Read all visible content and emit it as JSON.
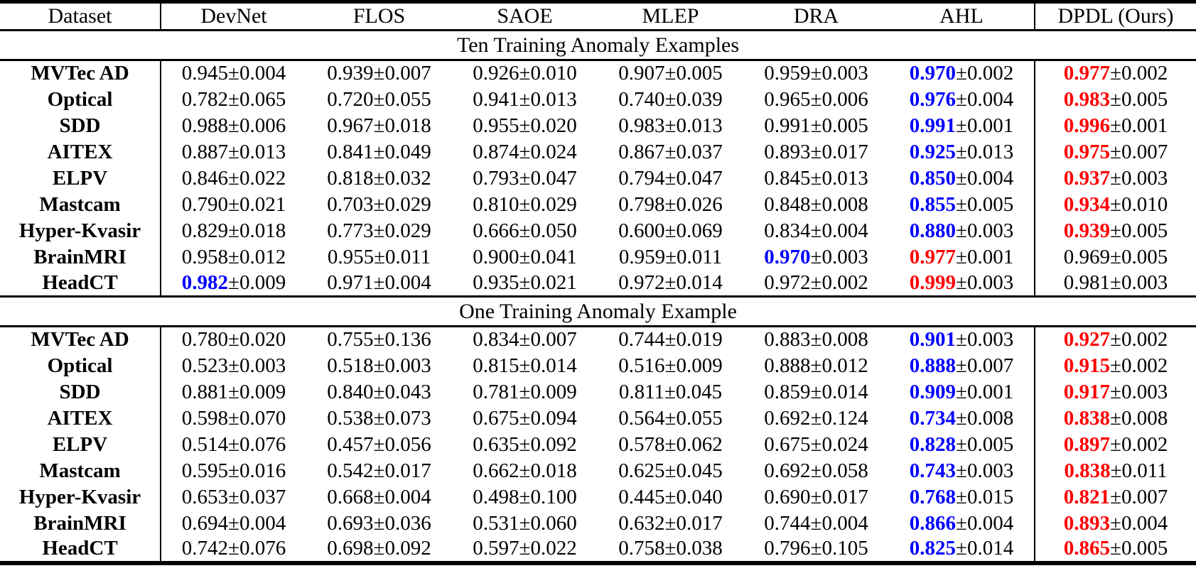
{
  "table": {
    "pm_symbol": "±",
    "colors": {
      "best": "#FF0000",
      "second_best": "#0000FF",
      "text": "#000000"
    },
    "columns": [
      "Dataset",
      "DevNet",
      "FLOS",
      "SAOE",
      "MLEP",
      "DRA",
      "AHL",
      "DPDL (Ours)"
    ],
    "sections": [
      {
        "title": "Ten Training Anomaly Examples",
        "rows": [
          {
            "dataset": "MVTec AD",
            "cells": [
              {
                "v": "0.945",
                "e": "0.004",
                "c": "black"
              },
              {
                "v": "0.939",
                "e": "0.007",
                "c": "black"
              },
              {
                "v": "0.926",
                "e": "0.010",
                "c": "black"
              },
              {
                "v": "0.907",
                "e": "0.005",
                "c": "black"
              },
              {
                "v": "0.959",
                "e": "0.003",
                "c": "black"
              },
              {
                "v": "0.970",
                "e": "0.002",
                "c": "blue"
              },
              {
                "v": "0.977",
                "e": "0.002",
                "c": "red"
              }
            ]
          },
          {
            "dataset": "Optical",
            "cells": [
              {
                "v": "0.782",
                "e": "0.065",
                "c": "black"
              },
              {
                "v": "0.720",
                "e": "0.055",
                "c": "black"
              },
              {
                "v": "0.941",
                "e": "0.013",
                "c": "black"
              },
              {
                "v": "0.740",
                "e": "0.039",
                "c": "black"
              },
              {
                "v": "0.965",
                "e": "0.006",
                "c": "black"
              },
              {
                "v": "0.976",
                "e": "0.004",
                "c": "blue"
              },
              {
                "v": "0.983",
                "e": "0.005",
                "c": "red"
              }
            ]
          },
          {
            "dataset": "SDD",
            "cells": [
              {
                "v": "0.988",
                "e": "0.006",
                "c": "black"
              },
              {
                "v": "0.967",
                "e": "0.018",
                "c": "black"
              },
              {
                "v": "0.955",
                "e": "0.020",
                "c": "black"
              },
              {
                "v": "0.983",
                "e": "0.013",
                "c": "black"
              },
              {
                "v": "0.991",
                "e": "0.005",
                "c": "black"
              },
              {
                "v": "0.991",
                "e": "0.001",
                "c": "blue"
              },
              {
                "v": "0.996",
                "e": "0.001",
                "c": "red"
              }
            ]
          },
          {
            "dataset": "AITEX",
            "cells": [
              {
                "v": "0.887",
                "e": "0.013",
                "c": "black"
              },
              {
                "v": "0.841",
                "e": "0.049",
                "c": "black"
              },
              {
                "v": "0.874",
                "e": "0.024",
                "c": "black"
              },
              {
                "v": "0.867",
                "e": "0.037",
                "c": "black"
              },
              {
                "v": "0.893",
                "e": "0.017",
                "c": "black"
              },
              {
                "v": "0.925",
                "e": "0.013",
                "c": "blue"
              },
              {
                "v": "0.975",
                "e": "0.007",
                "c": "red"
              }
            ]
          },
          {
            "dataset": "ELPV",
            "cells": [
              {
                "v": "0.846",
                "e": "0.022",
                "c": "black"
              },
              {
                "v": "0.818",
                "e": "0.032",
                "c": "black"
              },
              {
                "v": "0.793",
                "e": "0.047",
                "c": "black"
              },
              {
                "v": "0.794",
                "e": "0.047",
                "c": "black"
              },
              {
                "v": "0.845",
                "e": "0.013",
                "c": "black"
              },
              {
                "v": "0.850",
                "e": "0.004",
                "c": "blue"
              },
              {
                "v": "0.937",
                "e": "0.003",
                "c": "red"
              }
            ]
          },
          {
            "dataset": "Mastcam",
            "cells": [
              {
                "v": "0.790",
                "e": "0.021",
                "c": "black"
              },
              {
                "v": "0.703",
                "e": "0.029",
                "c": "black"
              },
              {
                "v": "0.810",
                "e": "0.029",
                "c": "black"
              },
              {
                "v": "0.798",
                "e": "0.026",
                "c": "black"
              },
              {
                "v": "0.848",
                "e": "0.008",
                "c": "black"
              },
              {
                "v": "0.855",
                "e": "0.005",
                "c": "blue"
              },
              {
                "v": "0.934",
                "e": "0.010",
                "c": "red"
              }
            ]
          },
          {
            "dataset": "Hyper-Kvasir",
            "cells": [
              {
                "v": "0.829",
                "e": "0.018",
                "c": "black"
              },
              {
                "v": "0.773",
                "e": "0.029",
                "c": "black"
              },
              {
                "v": "0.666",
                "e": "0.050",
                "c": "black"
              },
              {
                "v": "0.600",
                "e": "0.069",
                "c": "black"
              },
              {
                "v": "0.834",
                "e": "0.004",
                "c": "black"
              },
              {
                "v": "0.880",
                "e": "0.003",
                "c": "blue"
              },
              {
                "v": "0.939",
                "e": "0.005",
                "c": "red"
              }
            ]
          },
          {
            "dataset": "BrainMRI",
            "cells": [
              {
                "v": "0.958",
                "e": "0.012",
                "c": "black"
              },
              {
                "v": "0.955",
                "e": "0.011",
                "c": "black"
              },
              {
                "v": "0.900",
                "e": "0.041",
                "c": "black"
              },
              {
                "v": "0.959",
                "e": "0.011",
                "c": "black"
              },
              {
                "v": "0.970",
                "e": "0.003",
                "c": "blue"
              },
              {
                "v": "0.977",
                "e": "0.001",
                "c": "red"
              },
              {
                "v": "0.969",
                "e": "0.005",
                "c": "black"
              }
            ]
          },
          {
            "dataset": "HeadCT",
            "cells": [
              {
                "v": "0.982",
                "e": "0.009",
                "c": "blue"
              },
              {
                "v": "0.971",
                "e": "0.004",
                "c": "black"
              },
              {
                "v": "0.935",
                "e": "0.021",
                "c": "black"
              },
              {
                "v": "0.972",
                "e": "0.014",
                "c": "black"
              },
              {
                "v": "0.972",
                "e": "0.002",
                "c": "black"
              },
              {
                "v": "0.999",
                "e": "0.003",
                "c": "red"
              },
              {
                "v": "0.981",
                "e": "0.003",
                "c": "black"
              }
            ]
          }
        ]
      },
      {
        "title": "One Training Anomaly Example",
        "rows": [
          {
            "dataset": "MVTec AD",
            "cells": [
              {
                "v": "0.780",
                "e": "0.020",
                "c": "black"
              },
              {
                "v": "0.755",
                "e": "0.136",
                "c": "black"
              },
              {
                "v": "0.834",
                "e": "0.007",
                "c": "black"
              },
              {
                "v": "0.744",
                "e": "0.019",
                "c": "black"
              },
              {
                "v": "0.883",
                "e": "0.008",
                "c": "black"
              },
              {
                "v": "0.901",
                "e": "0.003",
                "c": "blue"
              },
              {
                "v": "0.927",
                "e": "0.002",
                "c": "red"
              }
            ]
          },
          {
            "dataset": "Optical",
            "cells": [
              {
                "v": "0.523",
                "e": "0.003",
                "c": "black"
              },
              {
                "v": "0.518",
                "e": "0.003",
                "c": "black"
              },
              {
                "v": "0.815",
                "e": "0.014",
                "c": "black"
              },
              {
                "v": "0.516",
                "e": "0.009",
                "c": "black"
              },
              {
                "v": "0.888",
                "e": "0.012",
                "c": "black"
              },
              {
                "v": "0.888",
                "e": "0.007",
                "c": "blue"
              },
              {
                "v": "0.915",
                "e": "0.002",
                "c": "red"
              }
            ]
          },
          {
            "dataset": "SDD",
            "cells": [
              {
                "v": "0.881",
                "e": "0.009",
                "c": "black"
              },
              {
                "v": "0.840",
                "e": "0.043",
                "c": "black"
              },
              {
                "v": "0.781",
                "e": "0.009",
                "c": "black"
              },
              {
                "v": "0.811",
                "e": "0.045",
                "c": "black"
              },
              {
                "v": "0.859",
                "e": "0.014",
                "c": "black"
              },
              {
                "v": "0.909",
                "e": "0.001",
                "c": "blue"
              },
              {
                "v": "0.917",
                "e": "0.003",
                "c": "red"
              }
            ]
          },
          {
            "dataset": "AITEX",
            "cells": [
              {
                "v": "0.598",
                "e": "0.070",
                "c": "black"
              },
              {
                "v": "0.538",
                "e": "0.073",
                "c": "black"
              },
              {
                "v": "0.675",
                "e": "0.094",
                "c": "black"
              },
              {
                "v": "0.564",
                "e": "0.055",
                "c": "black"
              },
              {
                "v": "0.692",
                "e": "0.124",
                "c": "black"
              },
              {
                "v": "0.734",
                "e": "0.008",
                "c": "blue"
              },
              {
                "v": "0.838",
                "e": "0.008",
                "c": "red"
              }
            ]
          },
          {
            "dataset": "ELPV",
            "cells": [
              {
                "v": "0.514",
                "e": "0.076",
                "c": "black"
              },
              {
                "v": "0.457",
                "e": "0.056",
                "c": "black"
              },
              {
                "v": "0.635",
                "e": "0.092",
                "c": "black"
              },
              {
                "v": "0.578",
                "e": "0.062",
                "c": "black"
              },
              {
                "v": "0.675",
                "e": "0.024",
                "c": "black"
              },
              {
                "v": "0.828",
                "e": "0.005",
                "c": "blue"
              },
              {
                "v": "0.897",
                "e": "0.002",
                "c": "red"
              }
            ]
          },
          {
            "dataset": "Mastcam",
            "cells": [
              {
                "v": "0.595",
                "e": "0.016",
                "c": "black"
              },
              {
                "v": "0.542",
                "e": "0.017",
                "c": "black"
              },
              {
                "v": "0.662",
                "e": "0.018",
                "c": "black"
              },
              {
                "v": "0.625",
                "e": "0.045",
                "c": "black"
              },
              {
                "v": "0.692",
                "e": "0.058",
                "c": "black"
              },
              {
                "v": "0.743",
                "e": "0.003",
                "c": "blue"
              },
              {
                "v": "0.838",
                "e": "0.011",
                "c": "red"
              }
            ]
          },
          {
            "dataset": "Hyper-Kvasir",
            "cells": [
              {
                "v": "0.653",
                "e": "0.037",
                "c": "black"
              },
              {
                "v": "0.668",
                "e": "0.004",
                "c": "black"
              },
              {
                "v": "0.498",
                "e": "0.100",
                "c": "black"
              },
              {
                "v": "0.445",
                "e": "0.040",
                "c": "black"
              },
              {
                "v": "0.690",
                "e": "0.017",
                "c": "black"
              },
              {
                "v": "0.768",
                "e": "0.015",
                "c": "blue"
              },
              {
                "v": "0.821",
                "e": "0.007",
                "c": "red"
              }
            ]
          },
          {
            "dataset": "BrainMRI",
            "cells": [
              {
                "v": "0.694",
                "e": "0.004",
                "c": "black"
              },
              {
                "v": "0.693",
                "e": "0.036",
                "c": "black"
              },
              {
                "v": "0.531",
                "e": "0.060",
                "c": "black"
              },
              {
                "v": "0.632",
                "e": "0.017",
                "c": "black"
              },
              {
                "v": "0.744",
                "e": "0.004",
                "c": "black"
              },
              {
                "v": "0.866",
                "e": "0.004",
                "c": "blue"
              },
              {
                "v": "0.893",
                "e": "0.004",
                "c": "red"
              }
            ]
          },
          {
            "dataset": "HeadCT",
            "cells": [
              {
                "v": "0.742",
                "e": "0.076",
                "c": "black"
              },
              {
                "v": "0.698",
                "e": "0.092",
                "c": "black"
              },
              {
                "v": "0.597",
                "e": "0.022",
                "c": "black"
              },
              {
                "v": "0.758",
                "e": "0.038",
                "c": "black"
              },
              {
                "v": "0.796",
                "e": "0.105",
                "c": "black"
              },
              {
                "v": "0.825",
                "e": "0.014",
                "c": "blue"
              },
              {
                "v": "0.865",
                "e": "0.005",
                "c": "red"
              }
            ]
          }
        ]
      }
    ]
  }
}
